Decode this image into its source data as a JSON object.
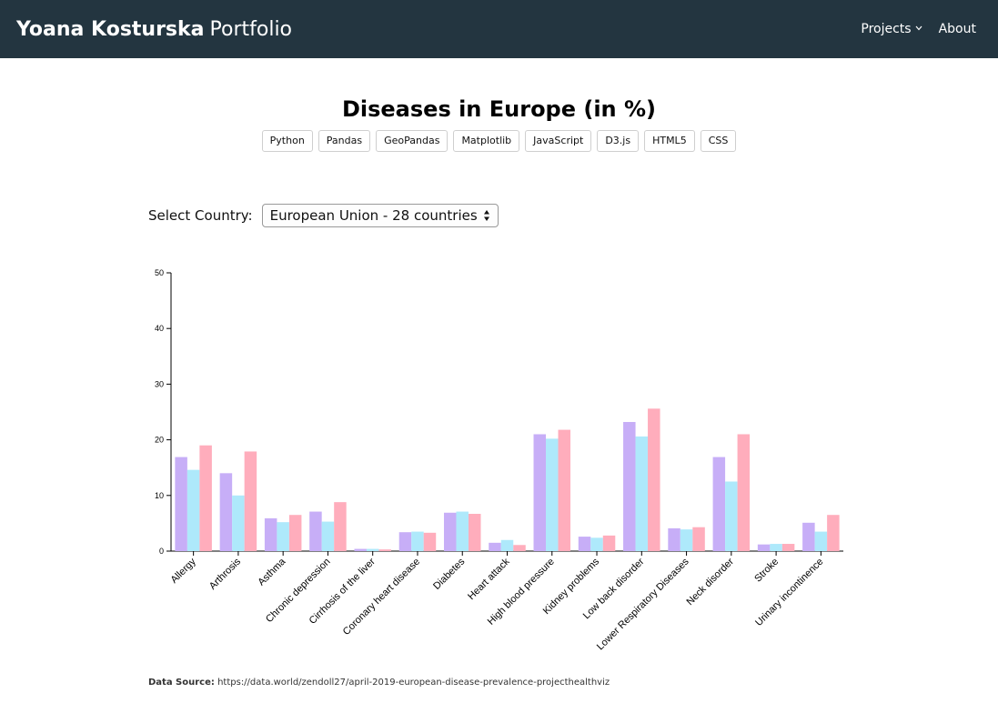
{
  "nav": {
    "brand_name": "Yoana Kosturska",
    "brand_suffix": "Portfolio",
    "projects_label": "Projects",
    "about_label": "About"
  },
  "page": {
    "title": "Diseases in Europe (in %)",
    "tags": [
      "Python",
      "Pandas",
      "GeoPandas",
      "Matplotlib",
      "JavaScript",
      "D3.js",
      "HTML5",
      "CSS"
    ]
  },
  "selector": {
    "label": "Select Country:",
    "selected": "European Union - 28 countries"
  },
  "colors": {
    "nav_bg": "#233540",
    "series": [
      "#c7aef7",
      "#aee9fb",
      "#ffadbc"
    ]
  },
  "chart_data": {
    "type": "bar",
    "categories": [
      "Allergy",
      "Arthrosis",
      "Asthma",
      "Chronic depression",
      "Cirrhosis of the liver",
      "Coronary heart disease",
      "Diabetes",
      "Heart attack",
      "High blood pressure",
      "Kidney problems",
      "Low back disorder",
      "Lower Respiratory Diseases",
      "Neck disorder",
      "Stroke",
      "Urinary incontinence"
    ],
    "series": [
      {
        "values": [
          16.9,
          14.0,
          5.9,
          7.1,
          0.4,
          3.4,
          6.9,
          1.5,
          21.0,
          2.6,
          23.2,
          4.1,
          16.9,
          1.2,
          5.1
        ]
      },
      {
        "values": [
          14.6,
          10.0,
          5.2,
          5.3,
          0.4,
          3.5,
          7.1,
          2.0,
          20.2,
          2.4,
          20.6,
          3.9,
          12.5,
          1.3,
          3.5
        ]
      },
      {
        "values": [
          19.0,
          17.9,
          6.5,
          8.8,
          0.3,
          3.3,
          6.7,
          1.1,
          21.8,
          2.8,
          25.6,
          4.3,
          21.0,
          1.3,
          6.5
        ]
      }
    ],
    "ylim": [
      0,
      50
    ],
    "yticks": [
      0,
      10,
      20,
      30,
      40,
      50
    ],
    "grid": false
  },
  "footer": {
    "source_label": "Data Source:",
    "source_text": "https://data.world/zendoll27/april-2019-european-disease-prevalence-projecthealthviz"
  }
}
